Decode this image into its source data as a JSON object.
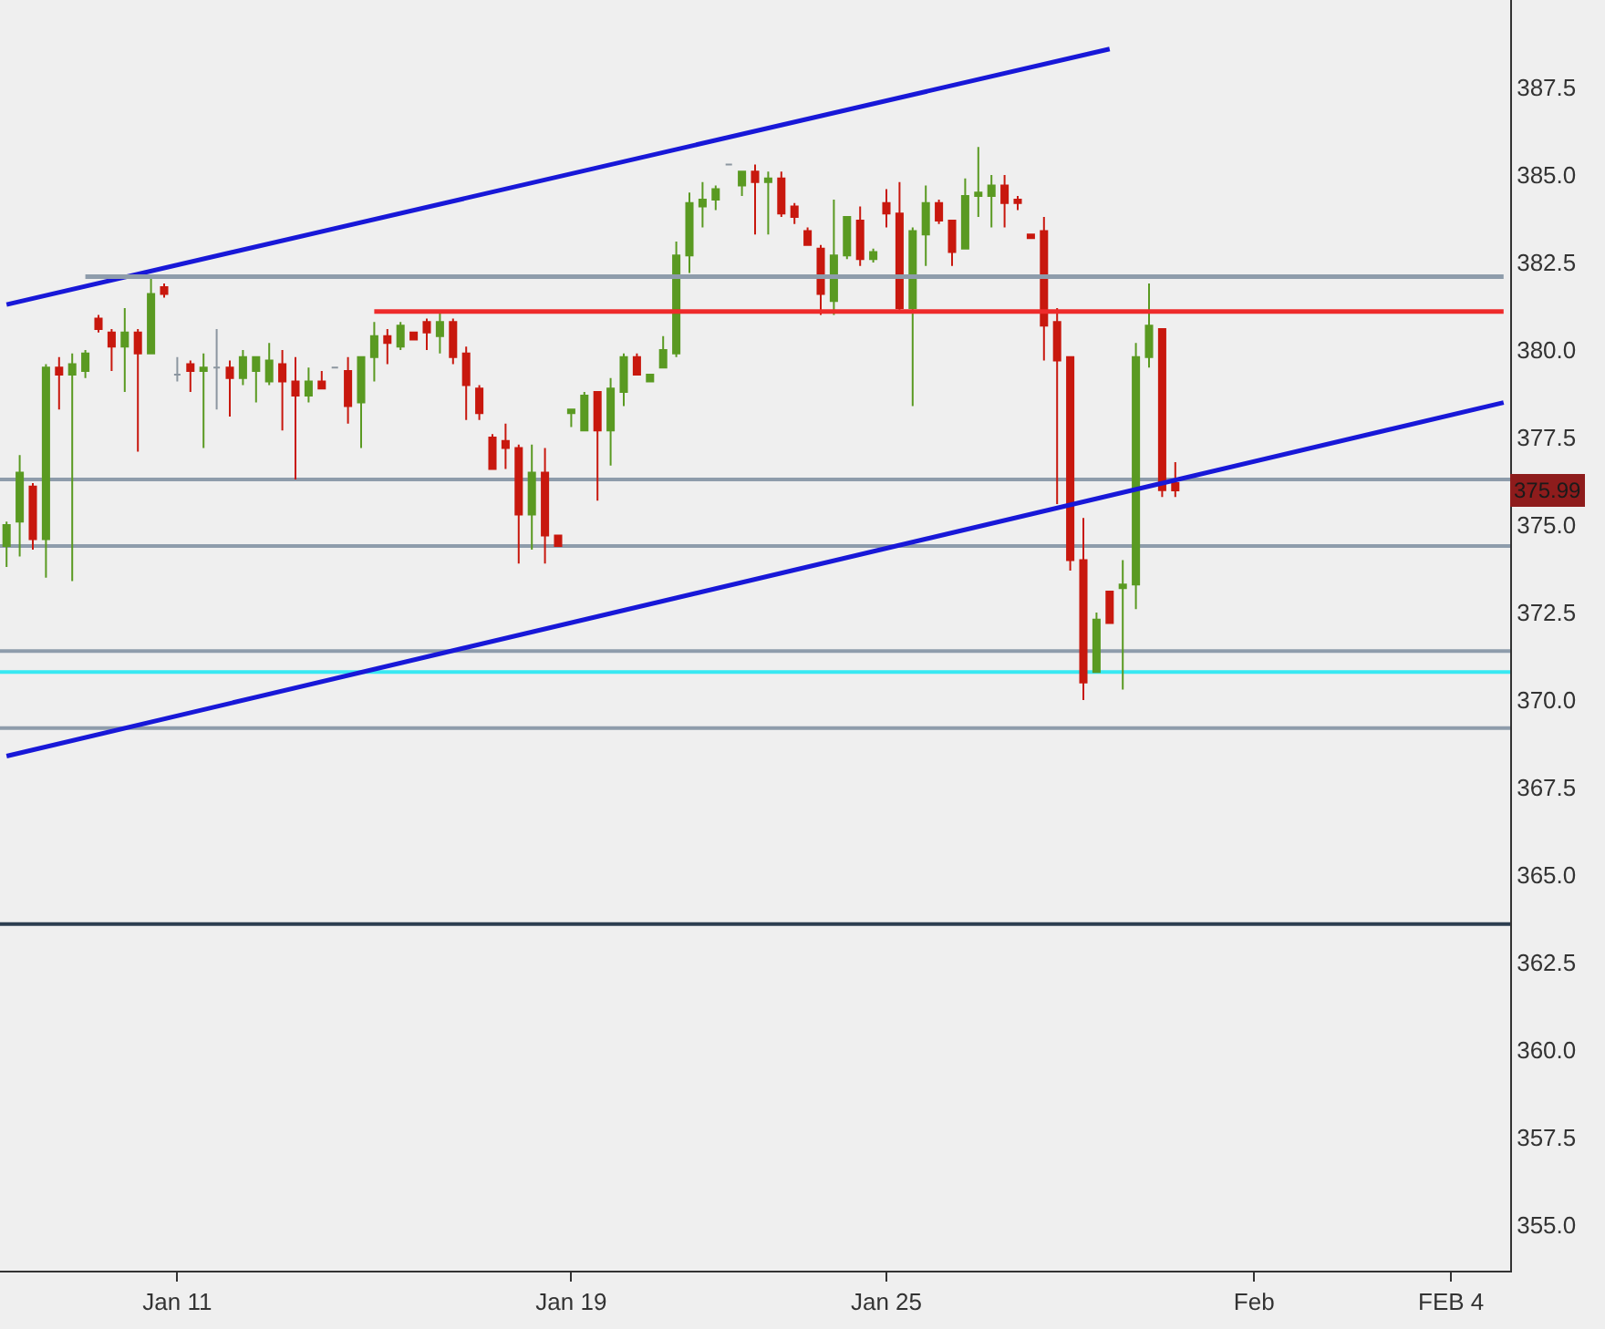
{
  "chart_data": {
    "type": "candlestick",
    "categories": [
      null,
      null,
      null,
      null,
      null,
      null,
      null,
      null,
      null,
      null,
      null,
      null,
      null,
      "Jan 11",
      null,
      null,
      null,
      null,
      null,
      null,
      null,
      null,
      null,
      null,
      null,
      null,
      null,
      null,
      null,
      null,
      null,
      null,
      null,
      null,
      null,
      null,
      null,
      null,
      null,
      null,
      null,
      null,
      null,
      "Jan 19",
      null,
      null,
      null,
      null,
      null,
      null,
      null,
      null,
      null,
      null,
      null,
      null,
      null,
      null,
      null,
      null,
      null,
      null,
      null,
      null,
      null,
      null,
      null,
      "Jan 25",
      null,
      null,
      null,
      null,
      null,
      null,
      null,
      null,
      null,
      null,
      null,
      null,
      null,
      null,
      null,
      null,
      null,
      null,
      null,
      null,
      null,
      null,
      null,
      null,
      null,
      null,
      null,
      "Feb",
      null,
      null,
      null,
      null,
      null,
      null,
      null,
      null,
      null,
      null,
      null,
      null,
      null,
      null,
      "FEB 4",
      null,
      null,
      null,
      null
    ],
    "ohlc": [
      [
        374.4,
        375.1,
        373.8,
        375.0
      ],
      [
        375.1,
        377.0,
        374.1,
        376.5
      ],
      [
        376.1,
        376.2,
        374.3,
        374.6
      ],
      [
        374.6,
        379.6,
        373.5,
        379.5
      ],
      [
        379.5,
        379.8,
        378.3,
        379.3
      ],
      [
        379.3,
        379.9,
        373.4,
        379.6
      ],
      [
        379.4,
        380.0,
        379.2,
        379.9
      ],
      [
        380.9,
        381.0,
        380.5,
        380.6
      ],
      [
        380.5,
        380.6,
        379.4,
        380.1
      ],
      [
        380.1,
        381.2,
        378.8,
        380.5
      ],
      [
        380.5,
        380.6,
        377.1,
        379.9
      ],
      [
        379.9,
        382.1,
        379.9,
        381.6
      ],
      [
        381.8,
        381.9,
        381.5,
        381.6
      ],
      [
        379.3,
        379.8,
        379.1,
        379.3
      ],
      [
        379.6,
        379.7,
        378.8,
        379.4
      ],
      [
        379.4,
        379.9,
        377.2,
        379.5
      ],
      [
        379.5,
        380.6,
        378.3,
        379.5
      ],
      [
        379.5,
        379.7,
        378.1,
        379.2
      ],
      [
        379.2,
        380.0,
        379.0,
        379.8
      ],
      [
        379.4,
        379.8,
        378.5,
        379.8
      ],
      [
        379.1,
        380.2,
        379.0,
        379.7
      ],
      [
        379.6,
        380.0,
        377.7,
        379.1
      ],
      [
        379.1,
        379.8,
        376.3,
        378.7
      ],
      [
        378.7,
        379.5,
        378.5,
        379.1
      ],
      [
        379.1,
        379.4,
        378.9,
        378.9
      ],
      [
        379.5,
        379.5,
        379.5,
        379.5
      ],
      [
        379.4,
        379.8,
        377.9,
        378.4
      ],
      [
        378.5,
        379.8,
        377.2,
        379.8
      ],
      [
        379.8,
        380.8,
        379.1,
        380.4
      ],
      [
        380.4,
        380.6,
        379.6,
        380.2
      ],
      [
        380.1,
        380.8,
        380.0,
        380.7
      ],
      [
        380.5,
        380.5,
        380.3,
        380.3
      ],
      [
        380.8,
        380.9,
        380.0,
        380.5
      ],
      [
        380.4,
        381.1,
        379.9,
        380.8
      ],
      [
        380.8,
        380.9,
        379.6,
        379.8
      ],
      [
        379.9,
        380.1,
        378.0,
        379.0
      ],
      [
        378.9,
        379.0,
        378.0,
        378.2
      ],
      [
        377.5,
        377.6,
        376.6,
        376.6
      ],
      [
        377.4,
        377.9,
        376.6,
        377.2
      ],
      [
        377.2,
        377.3,
        373.9,
        375.3
      ],
      [
        375.3,
        377.3,
        374.3,
        376.5
      ],
      [
        376.5,
        377.2,
        373.9,
        374.7
      ],
      [
        374.7,
        374.7,
        374.4,
        374.4
      ],
      [
        378.2,
        378.3,
        377.8,
        378.3
      ],
      [
        377.7,
        378.8,
        377.7,
        378.7
      ],
      [
        378.8,
        378.8,
        375.7,
        377.7
      ],
      [
        377.7,
        379.2,
        376.7,
        378.9
      ],
      [
        378.8,
        379.9,
        378.4,
        379.8
      ],
      [
        379.8,
        379.9,
        379.3,
        379.3
      ],
      [
        379.1,
        379.3,
        379.1,
        379.3
      ],
      [
        379.5,
        380.4,
        379.5,
        380.0
      ],
      [
        379.9,
        383.1,
        379.8,
        382.7
      ],
      [
        382.7,
        384.5,
        382.2,
        384.2
      ],
      [
        384.1,
        384.8,
        383.5,
        384.3
      ],
      [
        384.3,
        384.7,
        384.0,
        384.6
      ],
      [
        385.3,
        385.3,
        385.3,
        385.3
      ],
      [
        384.7,
        385.1,
        384.4,
        385.1
      ],
      [
        385.1,
        385.3,
        383.3,
        384.8
      ],
      [
        384.8,
        385.1,
        383.3,
        384.9
      ],
      [
        384.9,
        385.1,
        383.8,
        383.9
      ],
      [
        384.1,
        384.2,
        383.6,
        383.8
      ],
      [
        383.4,
        383.5,
        383.0,
        383.0
      ],
      [
        382.9,
        383.0,
        381.0,
        381.6
      ],
      [
        381.4,
        384.3,
        381.0,
        382.7
      ],
      [
        382.7,
        383.8,
        382.6,
        383.8
      ],
      [
        383.7,
        384.1,
        382.4,
        382.6
      ],
      [
        382.6,
        382.9,
        382.5,
        382.8
      ],
      [
        384.2,
        384.6,
        383.5,
        383.9
      ],
      [
        383.9,
        384.8,
        381.1,
        381.2
      ],
      [
        381.2,
        383.5,
        378.4,
        383.4
      ],
      [
        383.3,
        384.7,
        382.4,
        384.2
      ],
      [
        384.2,
        384.3,
        383.6,
        383.7
      ],
      [
        383.7,
        383.7,
        382.4,
        382.8
      ],
      [
        382.9,
        384.9,
        382.9,
        384.4
      ],
      [
        384.4,
        385.8,
        383.8,
        384.5
      ],
      [
        384.4,
        385.0,
        383.5,
        384.7
      ],
      [
        384.7,
        385.0,
        383.5,
        384.2
      ],
      [
        384.3,
        384.4,
        384.0,
        384.2
      ],
      [
        383.3,
        383.3,
        383.2,
        383.2
      ],
      [
        383.4,
        383.8,
        379.7,
        380.7
      ],
      [
        380.8,
        381.2,
        375.6,
        379.7
      ],
      [
        379.8,
        379.8,
        373.7,
        374.0
      ],
      [
        374.0,
        375.2,
        370.0,
        370.5
      ],
      [
        370.8,
        372.5,
        370.8,
        372.3
      ],
      [
        373.1,
        373.1,
        372.2,
        372.2
      ],
      [
        373.2,
        374.0,
        370.3,
        373.3
      ],
      [
        373.3,
        380.2,
        372.6,
        379.8
      ],
      [
        379.8,
        381.9,
        379.5,
        380.7
      ],
      [
        380.6,
        380.6,
        375.8,
        376.0
      ],
      [
        376.2,
        376.8,
        375.8,
        375.99
      ],
      null,
      null,
      null,
      null,
      null,
      null,
      null,
      null,
      null,
      null,
      null,
      null,
      null,
      null,
      null,
      null,
      null,
      null,
      null,
      null,
      null,
      null,
      null,
      null,
      null
    ],
    "colors": [
      "#5a9a22",
      "#5a9a22",
      "#c8180e",
      "#5a9a22",
      "#c8180e",
      "#5a9a22",
      "#5a9a22",
      "#c8180e",
      "#c8180e",
      "#5a9a22",
      "#c8180e",
      "#5a9a22",
      "#c8180e",
      "#8c96a0",
      "#c8180e",
      "#5a9a22",
      "#8c96a0",
      "#c8180e",
      "#5a9a22",
      "#5a9a22",
      "#5a9a22",
      "#c8180e",
      "#c8180e",
      "#5a9a22",
      "#c8180e",
      "#8c96a0",
      "#c8180e",
      "#5a9a22",
      "#5a9a22",
      "#c8180e",
      "#5a9a22",
      "#c8180e",
      "#c8180e",
      "#5a9a22",
      "#c8180e",
      "#c8180e",
      "#c8180e",
      "#c8180e",
      "#c8180e",
      "#c8180e",
      "#5a9a22",
      "#c8180e",
      "#c8180e",
      "#5a9a22",
      "#5a9a22",
      "#c8180e",
      "#5a9a22",
      "#5a9a22",
      "#c8180e",
      "#5a9a22",
      "#5a9a22",
      "#5a9a22",
      "#5a9a22",
      "#5a9a22",
      "#5a9a22",
      "#8c96a0",
      "#5a9a22",
      "#c8180e",
      "#5a9a22",
      "#c8180e",
      "#c8180e",
      "#c8180e",
      "#c8180e",
      "#5a9a22",
      "#5a9a22",
      "#c8180e",
      "#5a9a22",
      "#c8180e",
      "#c8180e",
      "#5a9a22",
      "#5a9a22",
      "#c8180e",
      "#c8180e",
      "#5a9a22",
      "#5a9a22",
      "#5a9a22",
      "#c8180e",
      "#c8180e",
      "#c8180e",
      "#c8180e",
      "#c8180e",
      "#c8180e",
      "#c8180e",
      "#5a9a22",
      "#c8180e",
      "#5a9a22",
      "#5a9a22",
      "#5a9a22",
      "#c8180e",
      "#c8180e",
      null,
      null,
      null,
      null,
      null,
      null,
      null,
      null,
      null,
      null,
      null,
      null,
      null,
      null,
      null,
      null,
      null,
      null,
      null,
      null,
      null,
      null,
      null,
      null,
      null
    ],
    "series": [
      {
        "type": "line",
        "color": "#1818d8",
        "values": [
          381.3,
          null,
          null,
          null,
          null,
          null,
          null,
          null,
          null,
          null,
          null,
          null,
          null,
          null,
          null,
          null,
          null,
          null,
          null,
          null,
          null,
          null,
          null,
          null,
          null,
          null,
          null,
          null,
          null,
          null,
          null,
          null,
          null,
          null,
          null,
          null,
          null,
          null,
          null,
          null,
          null,
          null,
          null,
          null,
          null,
          null,
          null,
          null,
          null,
          null,
          null,
          null,
          null,
          null,
          null,
          null,
          null,
          null,
          null,
          null,
          null,
          null,
          null,
          null,
          null,
          null,
          null,
          null,
          null,
          null,
          null,
          null,
          null,
          null,
          null,
          null,
          null,
          null,
          null,
          null,
          null,
          null,
          null,
          null,
          388.6,
          null,
          null,
          null,
          null,
          null,
          null,
          null,
          null,
          null,
          null,
          null,
          null,
          null,
          null,
          null,
          null,
          null,
          null,
          null,
          null,
          null,
          null,
          null,
          null,
          null,
          null,
          null,
          null,
          null,
          null
        ]
      },
      {
        "type": "line",
        "color": "#1818d8",
        "values": [
          368.4,
          null,
          null,
          null,
          null,
          null,
          null,
          null,
          null,
          null,
          null,
          null,
          null,
          null,
          null,
          null,
          null,
          null,
          null,
          null,
          null,
          null,
          null,
          null,
          null,
          null,
          null,
          null,
          null,
          null,
          null,
          null,
          null,
          null,
          null,
          null,
          null,
          null,
          null,
          null,
          null,
          null,
          null,
          null,
          null,
          null,
          null,
          null,
          null,
          null,
          null,
          null,
          null,
          null,
          null,
          null,
          null,
          null,
          null,
          null,
          null,
          null,
          null,
          null,
          null,
          null,
          null,
          null,
          null,
          null,
          null,
          null,
          null,
          null,
          null,
          null,
          null,
          null,
          null,
          null,
          null,
          null,
          null,
          null,
          null,
          null,
          null,
          null,
          null,
          null,
          null,
          null,
          null,
          null,
          null,
          null,
          null,
          null,
          null,
          null,
          null,
          null,
          null,
          null,
          null,
          null,
          null,
          null,
          null,
          null,
          null,
          null,
          null,
          null,
          378.5
        ]
      },
      {
        "type": "line",
        "color": "#8e9cab",
        "values": [
          null,
          null,
          null,
          null,
          null,
          null,
          382.1,
          null,
          null,
          null,
          null,
          null,
          null,
          null,
          null,
          null,
          null,
          null,
          null,
          null,
          null,
          null,
          null,
          null,
          null,
          null,
          null,
          null,
          null,
          null,
          null,
          null,
          null,
          null,
          null,
          null,
          null,
          null,
          null,
          null,
          null,
          null,
          null,
          null,
          null,
          null,
          null,
          null,
          null,
          null,
          null,
          null,
          null,
          null,
          null,
          null,
          null,
          null,
          null,
          null,
          null,
          null,
          null,
          null,
          null,
          null,
          null,
          null,
          null,
          null,
          null,
          null,
          null,
          null,
          null,
          null,
          null,
          null,
          null,
          null,
          null,
          null,
          null,
          null,
          null,
          null,
          null,
          null,
          null,
          null,
          null,
          null,
          null,
          null,
          null,
          null,
          null,
          null,
          null,
          null,
          null,
          null,
          null,
          null,
          null,
          null,
          null,
          null,
          null,
          null,
          null,
          null,
          null,
          null,
          382.1
        ]
      },
      {
        "type": "line",
        "color": "#ee2b2b",
        "values": [
          null,
          null,
          null,
          null,
          null,
          null,
          null,
          null,
          null,
          null,
          null,
          null,
          null,
          null,
          null,
          null,
          null,
          null,
          null,
          null,
          null,
          null,
          null,
          null,
          null,
          null,
          null,
          null,
          381.1,
          null,
          null,
          null,
          null,
          null,
          null,
          null,
          null,
          null,
          null,
          null,
          null,
          null,
          null,
          null,
          null,
          null,
          null,
          null,
          null,
          null,
          null,
          null,
          null,
          null,
          null,
          null,
          null,
          null,
          null,
          null,
          null,
          null,
          null,
          null,
          null,
          null,
          null,
          null,
          null,
          null,
          null,
          null,
          null,
          null,
          null,
          null,
          null,
          null,
          null,
          null,
          null,
          null,
          null,
          null,
          null,
          null,
          null,
          null,
          null,
          null,
          null,
          null,
          null,
          null,
          null,
          null,
          null,
          null,
          null,
          null,
          null,
          null,
          null,
          null,
          null,
          null,
          null,
          null,
          null,
          null,
          null,
          null,
          null,
          null,
          381.1
        ]
      }
    ],
    "ref_lines": [
      {
        "axis": "y",
        "value": 376.3,
        "color": "#8e9cab"
      },
      {
        "axis": "y",
        "value": 374.4,
        "color": "#8e9cab"
      },
      {
        "axis": "y",
        "value": 371.4,
        "color": "#8e9cab"
      },
      {
        "axis": "y",
        "value": 369.2,
        "color": "#8e9cab"
      },
      {
        "axis": "y",
        "value": 370.8,
        "color": "#38e8f2"
      },
      {
        "axis": "y",
        "value": 363.6,
        "color": "#2c3e50"
      }
    ],
    "annotations": [
      {
        "text": "375.99",
        "y": 375.99
      }
    ],
    "ylim": [
      353.7,
      390
    ],
    "yticks": [
      {
        "value": 355,
        "label": "355.0"
      },
      {
        "value": 357.5,
        "label": "357.5"
      },
      {
        "value": 360,
        "label": "360.0"
      },
      {
        "value": 362.5,
        "label": "362.5"
      },
      {
        "value": 365,
        "label": "365.0"
      },
      {
        "value": 367.5,
        "label": "367.5"
      },
      {
        "value": 370,
        "label": "370.0"
      },
      {
        "value": 372.5,
        "label": "372.5"
      },
      {
        "value": 375,
        "label": "375.0"
      },
      {
        "value": 377.5,
        "label": "377.5"
      },
      {
        "value": 380,
        "label": "380.0"
      },
      {
        "value": 382.5,
        "label": "382.5"
      },
      {
        "value": 385,
        "label": "385.0"
      },
      {
        "value": 387.5,
        "label": "387.5"
      }
    ],
    "grid": false
  }
}
